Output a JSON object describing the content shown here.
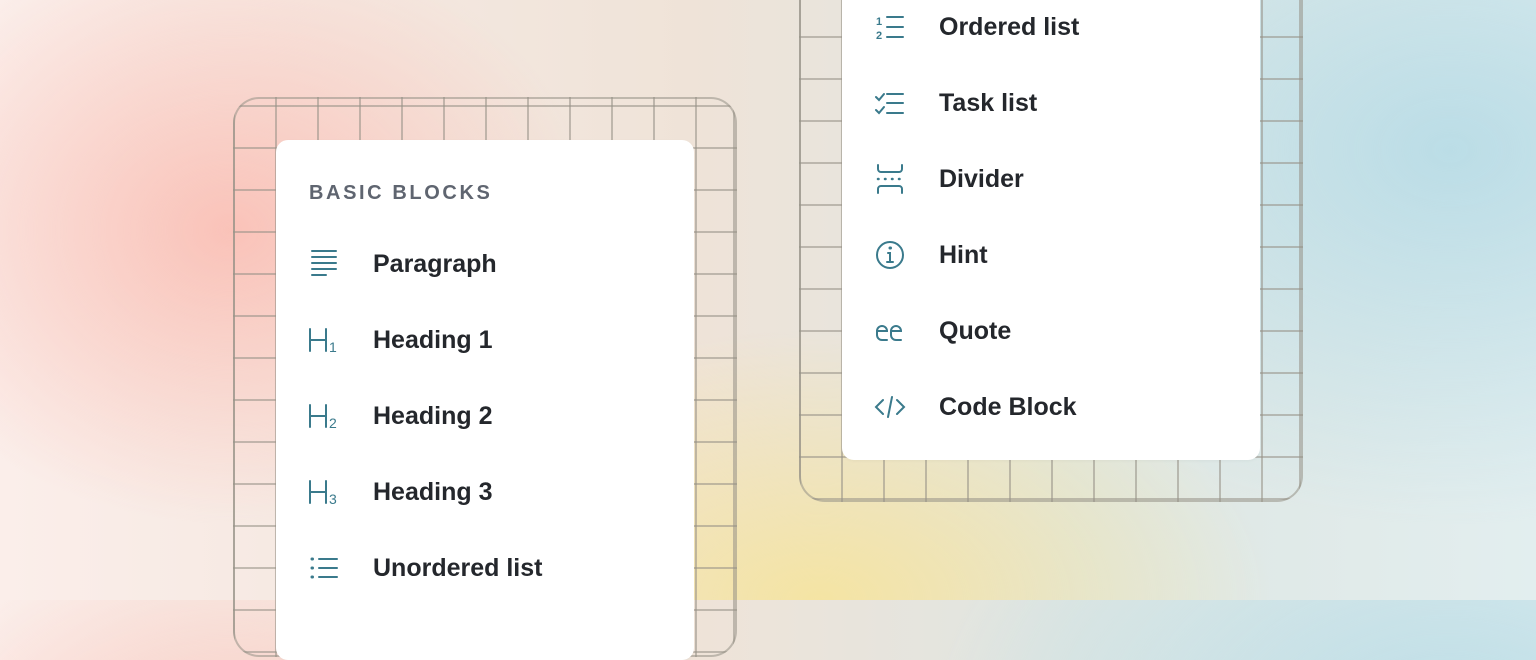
{
  "colors": {
    "icon": "#3a7a8c",
    "text": "#24272c",
    "section_title": "#5f6570"
  },
  "left_menu": {
    "section_title": "BASIC BLOCKS",
    "items": [
      {
        "label": "Paragraph",
        "icon": "paragraph-icon"
      },
      {
        "label": "Heading 1",
        "icon": "heading-1-icon"
      },
      {
        "label": "Heading 2",
        "icon": "heading-2-icon"
      },
      {
        "label": "Heading 3",
        "icon": "heading-3-icon"
      },
      {
        "label": "Unordered list",
        "icon": "unordered-list-icon"
      }
    ]
  },
  "right_menu": {
    "items": [
      {
        "label": "Ordered list",
        "icon": "ordered-list-icon"
      },
      {
        "label": "Task list",
        "icon": "task-list-icon"
      },
      {
        "label": "Divider",
        "icon": "divider-icon"
      },
      {
        "label": "Hint",
        "icon": "info-icon"
      },
      {
        "label": "Quote",
        "icon": "quote-icon"
      },
      {
        "label": "Code Block",
        "icon": "code-icon"
      }
    ]
  }
}
